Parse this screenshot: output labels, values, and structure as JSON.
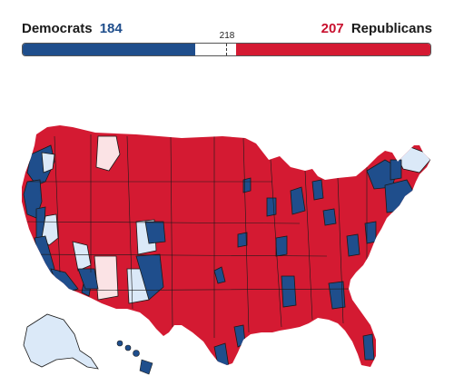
{
  "tally": {
    "dem_label": "Democrats",
    "dem_seats": "184",
    "rep_seats": "207",
    "rep_label": "Republicans",
    "majority_label": "218"
  },
  "seats": {
    "dem": 184,
    "rep": 207,
    "total": 435,
    "majority": 218
  },
  "colors": {
    "dem": "#1f4e8c",
    "rep": "#d41a32",
    "lean_dem": "#dbe9f8",
    "lean_rep": "#fbe3e5",
    "border": "#1a1a1a"
  },
  "map": {
    "regions": [
      "contiguous-us",
      "alaska",
      "hawaii"
    ]
  }
}
